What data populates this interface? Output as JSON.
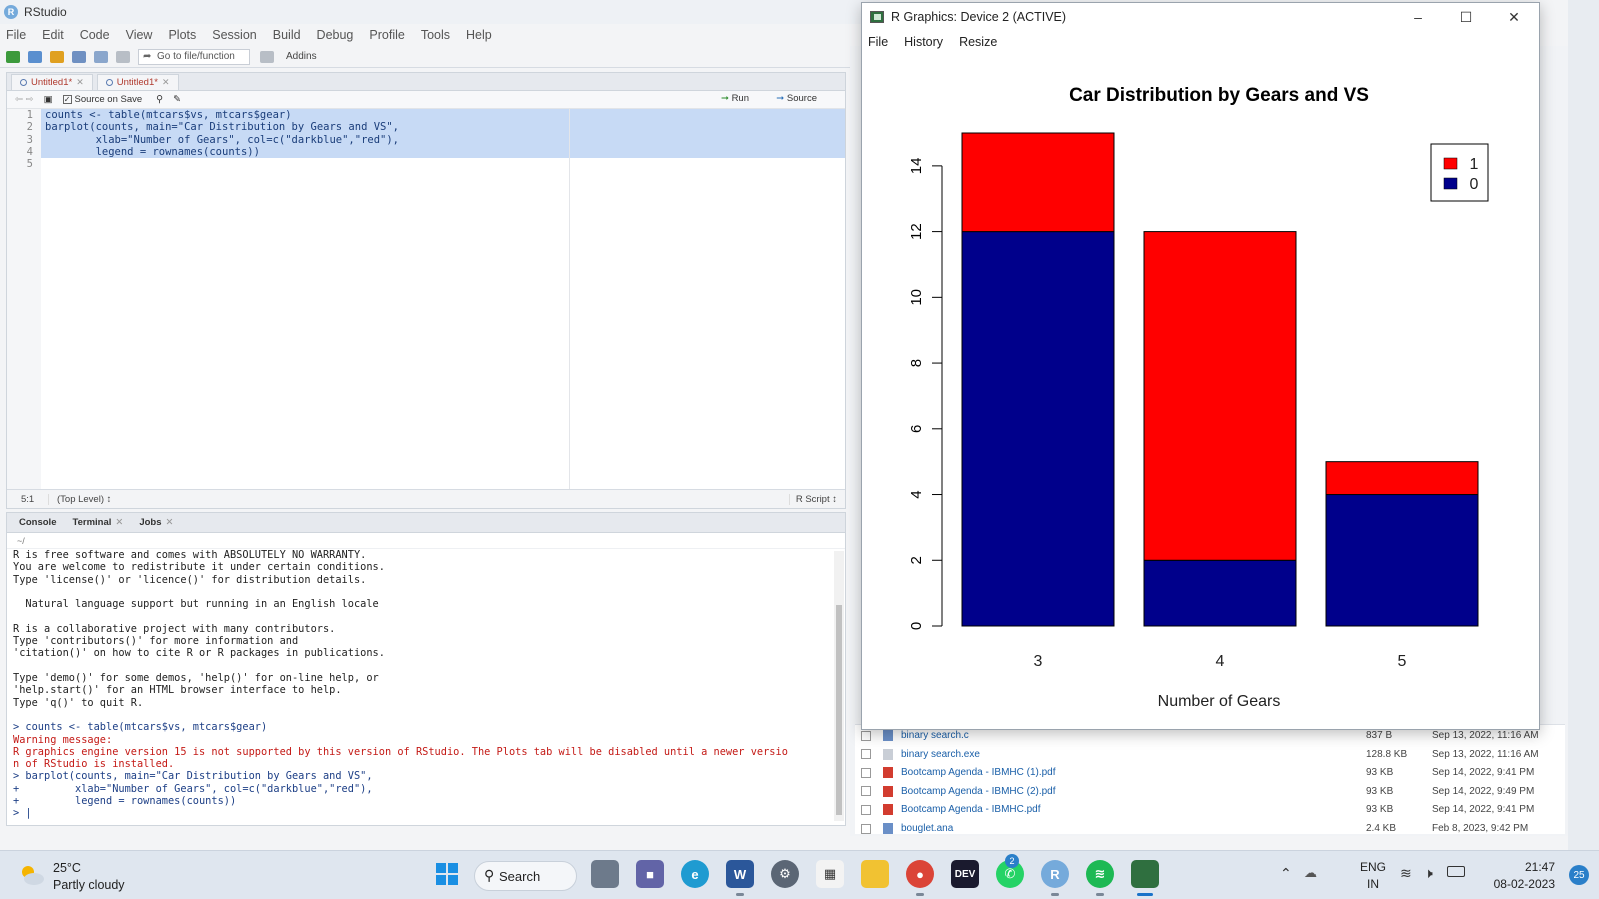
{
  "rstudio": {
    "title": "RStudio",
    "menu": [
      "File",
      "Edit",
      "Code",
      "View",
      "Plots",
      "Session",
      "Build",
      "Debug",
      "Profile",
      "Tools",
      "Help"
    ],
    "goto_placeholder": "Go to file/function",
    "addins": "Addins",
    "editor": {
      "tabs": [
        "Untitled1*",
        "Untitled1*"
      ],
      "source_on_save": "Source on Save",
      "run": "Run",
      "source": "Source",
      "lines": [
        {
          "n": "1",
          "text": "counts <- table(mtcars$vs, mtcars$gear)"
        },
        {
          "n": "2",
          "text": "barplot(counts, main=\"Car Distribution by Gears and VS\","
        },
        {
          "n": "3",
          "text": "        xlab=\"Number of Gears\", col=c(\"darkblue\",\"red\"),"
        },
        {
          "n": "4",
          "text": "        legend = rownames(counts))"
        },
        {
          "n": "5",
          "text": ""
        }
      ],
      "status_pos": "5:1",
      "status_level": "(Top Level) ↕",
      "status_type": "R Script ↕"
    },
    "console": {
      "tabs": [
        "Console",
        "Terminal",
        "Jobs"
      ],
      "path": "~/",
      "lines": [
        {
          "kind": "plain",
          "text": "R is free software and comes with ABSOLUTELY NO WARRANTY."
        },
        {
          "kind": "plain",
          "text": "You are welcome to redistribute it under certain conditions."
        },
        {
          "kind": "plain",
          "text": "Type 'license()' or 'licence()' for distribution details."
        },
        {
          "kind": "plain",
          "text": ""
        },
        {
          "kind": "plain",
          "text": "  Natural language support but running in an English locale"
        },
        {
          "kind": "plain",
          "text": ""
        },
        {
          "kind": "plain",
          "text": "R is a collaborative project with many contributors."
        },
        {
          "kind": "plain",
          "text": "Type 'contributors()' for more information and"
        },
        {
          "kind": "plain",
          "text": "'citation()' on how to cite R or R packages in publications."
        },
        {
          "kind": "plain",
          "text": ""
        },
        {
          "kind": "plain",
          "text": "Type 'demo()' for some demos, 'help()' for on-line help, or"
        },
        {
          "kind": "plain",
          "text": "'help.start()' for an HTML browser interface to help."
        },
        {
          "kind": "plain",
          "text": "Type 'q()' to quit R."
        },
        {
          "kind": "plain",
          "text": ""
        },
        {
          "kind": "input",
          "text": "> counts <- table(mtcars$vs, mtcars$gear)"
        },
        {
          "kind": "warn",
          "text": "Warning message:"
        },
        {
          "kind": "warn",
          "text": "R graphics engine version 15 is not supported by this version of RStudio. The Plots tab will be disabled until a newer versio"
        },
        {
          "kind": "warn",
          "text": "n of RStudio is installed."
        },
        {
          "kind": "input",
          "text": "> barplot(counts, main=\"Car Distribution by Gears and VS\","
        },
        {
          "kind": "input",
          "text": "+         xlab=\"Number of Gears\", col=c(\"darkblue\",\"red\"),"
        },
        {
          "kind": "input",
          "text": "+         legend = rownames(counts))"
        },
        {
          "kind": "input",
          "text": "> |"
        }
      ]
    },
    "files": [
      {
        "name": "binary search.c",
        "size": "837 B",
        "date": "Sep 13, 2022, 11:16 AM",
        "icon": "c-file-icon"
      },
      {
        "name": "binary search.exe",
        "size": "128.8 KB",
        "date": "Sep 13, 2022, 11:16 AM",
        "icon": "exe-file-icon"
      },
      {
        "name": "Bootcamp Agenda - IBMHC (1).pdf",
        "size": "93 KB",
        "date": "Sep 14, 2022, 9:41 PM",
        "icon": "pdf-file-icon"
      },
      {
        "name": "Bootcamp Agenda - IBMHC (2).pdf",
        "size": "93 KB",
        "date": "Sep 14, 2022, 9:49 PM",
        "icon": "pdf-file-icon"
      },
      {
        "name": "Bootcamp Agenda - IBMHC.pdf",
        "size": "93 KB",
        "date": "Sep 14, 2022, 9:41 PM",
        "icon": "pdf-file-icon"
      },
      {
        "name": "bouglet.ana",
        "size": "2.4 KB",
        "date": "Feb 8, 2023, 9:42 PM",
        "icon": "file-icon"
      }
    ]
  },
  "device": {
    "title": "R Graphics: Device 2 (ACTIVE)",
    "menu": [
      "File",
      "History",
      "Resize"
    ]
  },
  "chart_data": {
    "type": "bar",
    "stacked": true,
    "title": "Car Distribution by Gears and VS",
    "xlabel": "Number of Gears",
    "ylabel": "",
    "categories": [
      "3",
      "4",
      "5"
    ],
    "series": [
      {
        "name": "0",
        "color": "#00008b",
        "values": [
          12,
          2,
          4
        ]
      },
      {
        "name": "1",
        "color": "#ff0000",
        "values": [
          3,
          10,
          1
        ]
      }
    ],
    "ylim": [
      0,
      15
    ],
    "yticks": [
      0,
      2,
      4,
      6,
      8,
      10,
      12,
      14
    ],
    "legend": {
      "placement": "top-right",
      "entries": [
        "1",
        "0"
      ]
    },
    "grid": false
  },
  "taskbar": {
    "weather_temp": "25°C",
    "weather_desc": "Partly cloudy",
    "search": "Search",
    "lang_top": "ENG",
    "lang_bottom": "IN",
    "time": "21:47",
    "date": "08-02-2023",
    "notifications": "25",
    "whatsapp_badge": "2",
    "apps": [
      "windows-start",
      "file-explorer-task-view",
      "teams",
      "edge",
      "word",
      "settings",
      "microsoft-store",
      "file-explorer",
      "chrome",
      "dev",
      "whatsapp",
      "r",
      "spotify",
      "rgraphics"
    ]
  }
}
